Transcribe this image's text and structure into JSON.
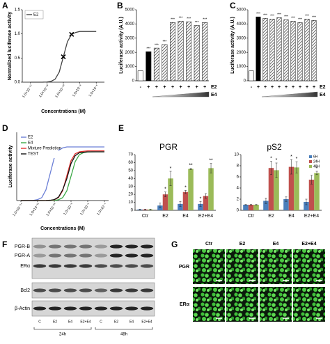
{
  "chart_data": [
    {
      "type": "line",
      "panel": "A",
      "ylabel": "Normalized luciferase activity",
      "xlabel": "Concentrations (M)",
      "x": [
        -14,
        -13.5,
        -13,
        -12.5,
        -12,
        -11.5,
        -11,
        -10.5,
        -10,
        -9.5,
        -9,
        -8.5,
        -8,
        -7.5,
        -7,
        -6.5,
        -6
      ],
      "series": [
        {
          "name": "E2",
          "color": "#444444",
          "values": [
            0,
            0,
            0,
            0.001,
            0.004,
            0.017,
            0.062,
            0.21,
            0.525,
            0.84,
            0.99,
            1.03,
            1.05,
            1.05,
            1.05,
            1.05,
            1.05
          ]
        }
      ],
      "markers": {
        "x": [
          -10,
          -9
        ],
        "values": [
          0.525,
          0.99
        ]
      },
      "xlim": [
        -15,
        -5
      ],
      "xticks": [
        {
          "value": -14,
          "label": "1.0×10⁻¹⁴"
        },
        {
          "value": -12,
          "label": "1.0×10⁻¹²"
        },
        {
          "value": -10,
          "label": "1.0×10⁻¹⁰"
        },
        {
          "value": -8,
          "label": "1.0×10⁻⁸"
        },
        {
          "value": -6,
          "label": "1.0×10⁻⁶"
        }
      ],
      "ylim": [
        0,
        1.5
      ],
      "yticks": [
        {
          "value": 0,
          "label": "0.0"
        },
        {
          "value": 0.5,
          "label": "0.5"
        },
        {
          "value": 1,
          "label": "1.0"
        },
        {
          "value": 1.5,
          "label": "1.5"
        }
      ],
      "legend": "top-left"
    },
    {
      "type": "bar",
      "panel": "B",
      "ylabel": "Luciferase activity (A.U.)",
      "values": [
        700,
        2050,
        2300,
        2550,
        4100,
        4200,
        4150,
        3900,
        4100
      ],
      "bar_styles": [
        "open",
        "solid",
        "hatched",
        "hatched",
        "hatched",
        "hatched",
        "hatched",
        "hatched",
        "hatched"
      ],
      "significance": [
        null,
        "***",
        "***",
        "***",
        "***",
        "***",
        "***",
        "***",
        "***"
      ],
      "treatments": [
        {
          "name": "E2",
          "signs": [
            "-",
            "+",
            "+",
            "+",
            "+",
            "+",
            "+",
            "+",
            "+"
          ]
        },
        {
          "name": "E4"
        }
      ],
      "ylim": [
        0,
        5000
      ],
      "yticks": [
        0,
        1000,
        2000,
        3000,
        4000,
        5000
      ]
    },
    {
      "type": "bar",
      "panel": "C",
      "ylabel": "Luciferase activity (A.U.)",
      "values": [
        700,
        4500,
        4400,
        4350,
        4450,
        4300,
        4200,
        4100,
        4350,
        4250
      ],
      "bar_styles": [
        "open",
        "solid",
        "hatched",
        "hatched",
        "hatched",
        "hatched",
        "hatched",
        "hatched",
        "hatched",
        "hatched"
      ],
      "significance": [
        null,
        "***",
        "***",
        "***",
        "***",
        "***",
        "***",
        "***",
        "***",
        "***"
      ],
      "treatments": [
        {
          "name": "E2",
          "signs": [
            "-",
            "+",
            "+",
            "+",
            "+",
            "+",
            "+",
            "+",
            "+",
            "+"
          ]
        },
        {
          "name": "E4"
        }
      ],
      "ylim": [
        0,
        5000
      ],
      "yticks": [
        0,
        1000,
        2000,
        3000,
        4000,
        5000
      ]
    },
    {
      "type": "line",
      "panel": "D",
      "ylabel": "Luciferase activity",
      "xlabel": "Concentrations (M)",
      "x": [
        -14,
        -13.5,
        -13,
        -12.5,
        -12,
        -11.5,
        -11,
        -10.5,
        -10,
        -9.5,
        -9,
        -8.5,
        -8,
        -7.5,
        -7,
        -6.5,
        -6,
        -5.5,
        -5,
        -4.5,
        -4
      ],
      "series": [
        {
          "name": "E2",
          "color": "#6b7fd6",
          "values": [
            0,
            0,
            0,
            0.004,
            0.02,
            0.06,
            0.22,
            0.55,
            0.88,
            1.03,
            1.08,
            1.1,
            1.1,
            1.1,
            1.1,
            1.1,
            1.1,
            1.1,
            1.1,
            1.1,
            1.1
          ]
        },
        {
          "name": "E4",
          "color": "#3aa845",
          "values": [
            0,
            0,
            0,
            0,
            0,
            0,
            0,
            0.001,
            0.004,
            0.016,
            0.059,
            0.2,
            0.5,
            0.8,
            0.94,
            0.984,
            0.996,
            0.999,
            1,
            1,
            1
          ]
        },
        {
          "name": "Mixture Prediction",
          "color": "#e0312f",
          "values": [
            0,
            0,
            0,
            0,
            0,
            0,
            0.001,
            0.004,
            0.016,
            0.06,
            0.2,
            0.51,
            0.82,
            0.96,
            1,
            1.01,
            1.02,
            1.02,
            1.02,
            1.02,
            1.02
          ]
        },
        {
          "name": "TEST",
          "color": "#111111",
          "values": [
            0,
            0,
            0,
            0,
            0,
            0,
            0.002,
            0.006,
            0.02,
            0.07,
            0.22,
            0.45,
            0.76,
            0.92,
            0.98,
            0.99,
            1,
            1,
            1,
            1,
            1
          ]
        }
      ],
      "xlim": [
        -14.5,
        -3.5
      ],
      "xticks": [
        {
          "value": -14,
          "label": "1.0×10⁻¹⁴"
        },
        {
          "value": -12,
          "label": "1.0×10⁻¹²"
        },
        {
          "value": -10,
          "label": "1.0×10⁻¹⁰"
        },
        {
          "value": -8,
          "label": "1.0×10⁻⁸"
        },
        {
          "value": -6,
          "label": "1.0×10⁻⁶"
        },
        {
          "value": -4,
          "label": "1.0×10⁻⁴"
        }
      ],
      "ylim": [
        0,
        1.4
      ],
      "legend": "top-left"
    },
    {
      "type": "grouped_bar",
      "panel": "E",
      "title": "PGR",
      "categories": [
        "Ctr",
        "E2",
        "E4",
        "E2+E4"
      ],
      "series": [
        {
          "color": "#4a7ebb",
          "values": [
            1,
            6,
            8,
            8
          ],
          "errors": [
            0.5,
            3,
            3,
            3
          ],
          "significance": [
            null,
            null,
            null,
            "*"
          ]
        },
        {
          "color": "#c0504d",
          "values": [
            1,
            20,
            23,
            18
          ],
          "errors": [
            0.5,
            3,
            2,
            3
          ],
          "significance": [
            null,
            "*",
            "*",
            null
          ]
        },
        {
          "color": "#9bbb59",
          "values": [
            1,
            40,
            52,
            53
          ],
          "errors": [
            0.5,
            9,
            1,
            6
          ],
          "significance": [
            null,
            "*",
            "**",
            "**"
          ]
        }
      ],
      "ylim": [
        0,
        70
      ],
      "yticks": [
        0,
        10,
        20,
        30,
        40,
        50,
        60,
        70
      ]
    },
    {
      "type": "grouped_bar",
      "title": "pS2",
      "categories": [
        "Ctr",
        "E2",
        "E4",
        "E2+E4"
      ],
      "series": [
        {
          "name": "6H",
          "color": "#4a7ebb",
          "values": [
            1,
            1.7,
            2,
            1.5
          ],
          "errors": [
            0.05,
            0.5,
            0.4,
            0.5
          ],
          "significance": [
            null,
            null,
            null,
            null
          ]
        },
        {
          "name": "24H",
          "color": "#c0504d",
          "values": [
            1,
            7.6,
            7.8,
            5.5
          ],
          "errors": [
            0.05,
            1.2,
            1.3,
            0.8
          ],
          "significance": [
            null,
            "*",
            "*",
            null
          ]
        },
        {
          "name": "48H",
          "color": "#9bbb59",
          "values": [
            1,
            7.2,
            7.7,
            6.7
          ],
          "errors": [
            0.05,
            1.3,
            1.0,
            0.3
          ],
          "significance": [
            null,
            "*",
            "*",
            "*"
          ]
        }
      ],
      "ylim": [
        0,
        10
      ],
      "yticks": [
        0,
        2,
        4,
        6,
        8,
        10
      ],
      "legend": "top-right"
    }
  ],
  "blot": {
    "panel": "F",
    "bands": [
      "PGR-B",
      "PGR-A",
      "ERα",
      "Bcl2",
      "β-Actin"
    ],
    "lanes": [
      "C",
      "E2",
      "E4",
      "E2+E4",
      "C",
      "E2",
      "E4",
      "E2+E4"
    ],
    "timepoints": [
      "24h",
      "48h"
    ]
  },
  "micrographs": {
    "panel": "G",
    "columns": [
      "Ctr",
      "E2",
      "E4",
      "E2+E4"
    ],
    "rows": [
      "PGR",
      "ERα"
    ]
  }
}
